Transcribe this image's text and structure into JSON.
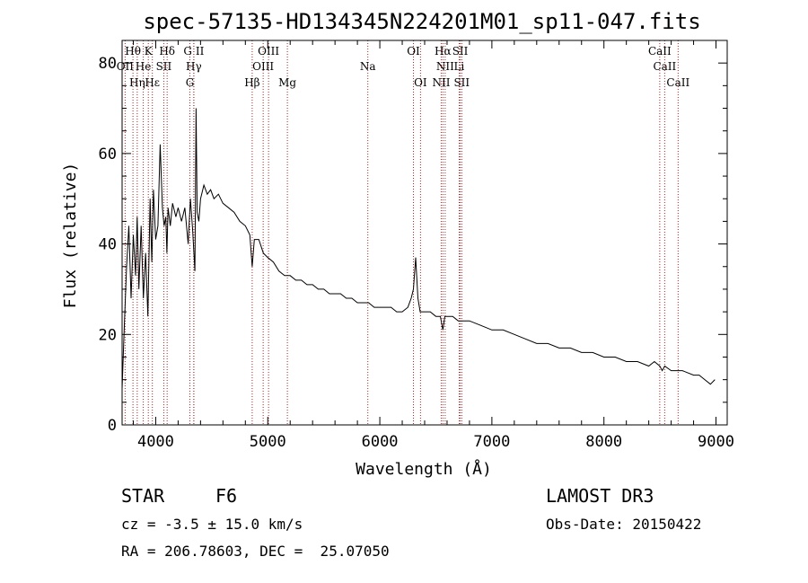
{
  "chart_data": {
    "type": "line",
    "title": "spec-57135-HD134345N224201M01_sp11-047.fits",
    "xlabel": "Wavelength (Å)",
    "ylabel": "Flux (relative)",
    "xlim": [
      3700,
      9100
    ],
    "ylim": [
      0,
      85
    ],
    "xticks": [
      4000,
      5000,
      6000,
      7000,
      8000,
      9000
    ],
    "yticks": [
      0,
      20,
      40,
      60,
      80
    ],
    "series": [
      {
        "name": "spectrum",
        "x": [
          3700,
          3720,
          3740,
          3760,
          3780,
          3800,
          3820,
          3835,
          3850,
          3870,
          3890,
          3910,
          3930,
          3950,
          3965,
          3980,
          4000,
          4020,
          4040,
          4060,
          4075,
          4090,
          4100,
          4110,
          4130,
          4150,
          4180,
          4200,
          4230,
          4260,
          4290,
          4310,
          4330,
          4350,
          4360,
          4370,
          4385,
          4400,
          4430,
          4460,
          4490,
          4520,
          4560,
          4600,
          4650,
          4700,
          4750,
          4800,
          4840,
          4861,
          4880,
          4920,
          4960,
          5000,
          5050,
          5100,
          5150,
          5200,
          5250,
          5300,
          5350,
          5400,
          5450,
          5500,
          5550,
          5600,
          5650,
          5700,
          5750,
          5800,
          5850,
          5900,
          5950,
          6000,
          6050,
          6100,
          6150,
          6200,
          6250,
          6280,
          6300,
          6320,
          6340,
          6360,
          6400,
          6450,
          6500,
          6540,
          6563,
          6580,
          6600,
          6650,
          6700,
          6750,
          6800,
          6900,
          7000,
          7100,
          7200,
          7300,
          7400,
          7500,
          7600,
          7700,
          7800,
          7900,
          8000,
          8100,
          8200,
          8300,
          8400,
          8450,
          8498,
          8520,
          8542,
          8600,
          8662,
          8700,
          8800,
          8850,
          8900,
          8950,
          8990
        ],
        "y": [
          8,
          22,
          35,
          44,
          28,
          42,
          33,
          46,
          30,
          44,
          28,
          38,
          24,
          50,
          36,
          52,
          41,
          44,
          62,
          48,
          44,
          46,
          38,
          48,
          44,
          49,
          46,
          48,
          45,
          48,
          40,
          50,
          43,
          34,
          70,
          47,
          45,
          50,
          53,
          51,
          52,
          50,
          51,
          49,
          48,
          47,
          45,
          44,
          42,
          35,
          41,
          41,
          38,
          37,
          36,
          34,
          33,
          33,
          32,
          32,
          31,
          31,
          30,
          30,
          29,
          29,
          29,
          28,
          28,
          27,
          27,
          27,
          26,
          26,
          26,
          26,
          25,
          25,
          26,
          28,
          30,
          37,
          28,
          25,
          25,
          25,
          24,
          24,
          21,
          24,
          24,
          24,
          23,
          23,
          23,
          22,
          21,
          21,
          20,
          19,
          18,
          18,
          17,
          17,
          16,
          16,
          15,
          15,
          14,
          14,
          13,
          14,
          13,
          12,
          13,
          12,
          12,
          12,
          11,
          11,
          10,
          9,
          10
        ]
      }
    ],
    "line_markers": [
      {
        "label": "Hθ",
        "x": 3797,
        "row": 0
      },
      {
        "label": "K",
        "x": 3934,
        "row": 0
      },
      {
        "label": "Hδ",
        "x": 4102,
        "row": 0
      },
      {
        "label": "G II",
        "x": 4340,
        "row": 0
      },
      {
        "label": "OIII",
        "x": 5007,
        "row": 0
      },
      {
        "label": "OI",
        "x": 6300,
        "row": 0
      },
      {
        "label": "Hα",
        "x": 6563,
        "row": 0
      },
      {
        "label": "SII",
        "x": 6717,
        "row": 0
      },
      {
        "label": "CaII",
        "x": 8498,
        "row": 0
      },
      {
        "label": "OII",
        "x": 3727,
        "row": 1
      },
      {
        "label": "He",
        "x": 3889,
        "row": 1
      },
      {
        "label": "SII",
        "x": 4072,
        "row": 1
      },
      {
        "label": "Hγ",
        "x": 4340,
        "row": 1
      },
      {
        "label": "OIII",
        "x": 4959,
        "row": 1
      },
      {
        "label": "Na",
        "x": 5893,
        "row": 1
      },
      {
        "label": "NII",
        "x": 6583,
        "row": 1
      },
      {
        "label": "Li",
        "x": 6708,
        "row": 1
      },
      {
        "label": "CaII",
        "x": 8542,
        "row": 1
      },
      {
        "label": "Hε",
        "x": 3970,
        "row": 2
      },
      {
        "label": "Hη",
        "x": 3835,
        "row": 2
      },
      {
        "label": "G",
        "x": 4305,
        "row": 2
      },
      {
        "label": "Hβ",
        "x": 4861,
        "row": 2
      },
      {
        "label": "Mg",
        "x": 5175,
        "row": 2
      },
      {
        "label": "OI",
        "x": 6363,
        "row": 2
      },
      {
        "label": "NII",
        "x": 6548,
        "row": 2
      },
      {
        "label": "SII",
        "x": 6731,
        "row": 2
      },
      {
        "label": "CaII",
        "x": 8662,
        "row": 2
      }
    ],
    "grid": false,
    "marker_color": "#b22222"
  },
  "info": {
    "object_class": "STAR",
    "subclass": "F6",
    "survey": "LAMOST DR3",
    "cz": "cz = -3.5 ± 15.0 km/s",
    "obs_date": "Obs-Date: 20150422",
    "coords": "RA = 206.78603, DEC =  25.07050"
  }
}
